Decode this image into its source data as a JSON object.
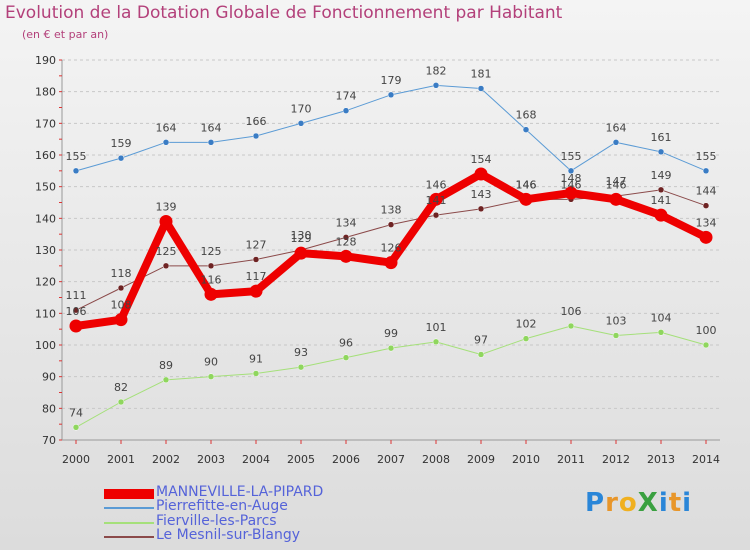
{
  "header": {
    "title": "Evolution de la Dotation Globale de Fonctionnement par Habitant",
    "subtitle": "(en € et par an)"
  },
  "logo": {
    "text": "ProXiti",
    "letters": [
      "P",
      "r",
      "o",
      "X",
      "i",
      "t",
      "i"
    ],
    "colors": [
      "#2a86d8",
      "#e8962a",
      "#f0b020",
      "#3aa040",
      "#2a86d8",
      "#e8962a",
      "#2a86d8"
    ]
  },
  "chart_data": {
    "type": "line",
    "title": "Evolution de la Dotation Globale de Fonctionnement par Habitant",
    "subtitle": "(en € et par an)",
    "xlabel": "",
    "ylabel": "",
    "ylim": [
      70,
      190
    ],
    "yticks": [
      70,
      80,
      90,
      100,
      110,
      120,
      130,
      140,
      150,
      160,
      170,
      180,
      190
    ],
    "categories": [
      "2000",
      "2001",
      "2002",
      "2003",
      "2004",
      "2005",
      "2006",
      "2007",
      "2008",
      "2009",
      "2010",
      "2011",
      "2012",
      "2013",
      "2014"
    ],
    "grid": "horizontal dashed",
    "legend_position": "bottom-left",
    "series": [
      {
        "name": "Pierrefitte-en-Auge",
        "color": "#5b9bd5",
        "marker": "#3a7cc4",
        "width": 1,
        "values": [
          155,
          159,
          164,
          164,
          166,
          170,
          174,
          179,
          182,
          181,
          168,
          155,
          164,
          161,
          155
        ]
      },
      {
        "name": "Fierville-les-Parcs",
        "color": "#a5e07a",
        "marker": "#8fd65e",
        "width": 1,
        "values": [
          74,
          82,
          89,
          90,
          91,
          93,
          96,
          99,
          101,
          97,
          102,
          106,
          103,
          104,
          100
        ]
      },
      {
        "name": "Le Mesnil-sur-Blangy",
        "color": "#8b4a4a",
        "marker": "#6e2323",
        "width": 1,
        "values": [
          111,
          118,
          125,
          125,
          127,
          130,
          134,
          138,
          141,
          143,
          146,
          146,
          147,
          149,
          144
        ]
      },
      {
        "name": "MANNEVILLE-LA-PIPARD",
        "color": "#ee0000",
        "marker": "#ee0000",
        "width": 8,
        "values": [
          106,
          108,
          139,
          116,
          117,
          129,
          128,
          126,
          146,
          154,
          146,
          148,
          146,
          141,
          134
        ]
      }
    ],
    "legend_order": [
      "MANNEVILLE-LA-PIPARD",
      "Pierrefitte-en-Auge",
      "Fierville-les-Parcs",
      "Le Mesnil-sur-Blangy"
    ]
  }
}
